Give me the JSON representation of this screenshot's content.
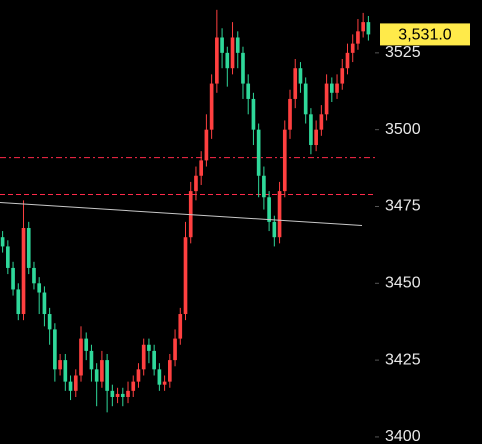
{
  "chart_data": {
    "type": "candlestick",
    "ylim": [
      3397.7,
      3542.2
    ],
    "yticks": [
      3400,
      3425,
      3450,
      3475,
      3500,
      3525
    ],
    "up_color": "#ff4040",
    "down_color": "#2fd89a",
    "open": [
      3465,
      3462,
      3455,
      3448,
      3440,
      3468,
      3455,
      3450,
      3447,
      3440,
      3435,
      3422,
      3425,
      3418,
      3415,
      3420,
      3432,
      3428,
      3422,
      3418,
      3425,
      3415,
      3413,
      3414,
      3413,
      3415,
      3418,
      3422,
      3430,
      3428,
      3422,
      3417,
      3418,
      3425,
      3432,
      3440,
      3465,
      3480,
      3485,
      3490,
      3500,
      3515,
      3530,
      3525,
      3520,
      3530,
      3525,
      3515,
      3510,
      3500,
      3485,
      3478,
      3470,
      3465,
      3480,
      3500,
      3510,
      3520,
      3515,
      3505,
      3495,
      3500,
      3505,
      3515,
      3512,
      3515,
      3520,
      3525,
      3528,
      3532,
      3535
    ],
    "high": [
      3467,
      3464,
      3457,
      3450,
      3477,
      3470,
      3457,
      3452,
      3449,
      3442,
      3437,
      3427,
      3427,
      3420,
      3422,
      3436,
      3434,
      3430,
      3424,
      3428,
      3427,
      3417,
      3416,
      3416,
      3418,
      3420,
      3424,
      3432,
      3432,
      3430,
      3424,
      3420,
      3427,
      3435,
      3442,
      3470,
      3483,
      3488,
      3493,
      3505,
      3518,
      3539,
      3533,
      3527,
      3535,
      3532,
      3527,
      3518,
      3512,
      3502,
      3488,
      3480,
      3472,
      3483,
      3503,
      3513,
      3523,
      3522,
      3517,
      3507,
      3503,
      3508,
      3518,
      3517,
      3518,
      3523,
      3528,
      3531,
      3536,
      3538,
      3537
    ],
    "low": [
      3460,
      3453,
      3446,
      3438,
      3438,
      3453,
      3448,
      3440,
      3436,
      3430,
      3418,
      3420,
      3415,
      3412,
      3413,
      3418,
      3425,
      3418,
      3410,
      3416,
      3408,
      3410,
      3411,
      3410,
      3411,
      3413,
      3416,
      3420,
      3424,
      3420,
      3415,
      3415,
      3416,
      3423,
      3430,
      3438,
      3463,
      3477,
      3482,
      3488,
      3497,
      3512,
      3520,
      3514,
      3518,
      3520,
      3510,
      3505,
      3495,
      3478,
      3474,
      3467,
      3462,
      3463,
      3478,
      3497,
      3507,
      3512,
      3502,
      3492,
      3493,
      3498,
      3503,
      3509,
      3510,
      3513,
      3518,
      3522,
      3526,
      3530,
      3529
    ],
    "close": [
      3462,
      3455,
      3448,
      3440,
      3468,
      3455,
      3450,
      3447,
      3440,
      3435,
      3422,
      3425,
      3418,
      3415,
      3420,
      3432,
      3428,
      3422,
      3418,
      3425,
      3415,
      3413,
      3414,
      3413,
      3415,
      3418,
      3422,
      3430,
      3428,
      3422,
      3417,
      3418,
      3425,
      3432,
      3440,
      3465,
      3480,
      3485,
      3490,
      3500,
      3515,
      3530,
      3525,
      3520,
      3530,
      3525,
      3515,
      3510,
      3500,
      3485,
      3478,
      3470,
      3465,
      3480,
      3500,
      3510,
      3520,
      3515,
      3505,
      3495,
      3500,
      3505,
      3515,
      3512,
      3515,
      3520,
      3525,
      3528,
      3532,
      3535,
      3531
    ],
    "hlines": [
      {
        "value": 3490.9,
        "color": "#ff2a4a",
        "style": "dashdot"
      },
      {
        "value": 3478.9,
        "color": "#ff2a4a",
        "style": "dashed"
      }
    ],
    "trend_line": {
      "values": [
        3476.3,
        3468.8
      ],
      "color": "#c8c8c8"
    },
    "last_price": {
      "value": 3531,
      "label": "3,531.0",
      "color": "#ffea4a"
    }
  }
}
